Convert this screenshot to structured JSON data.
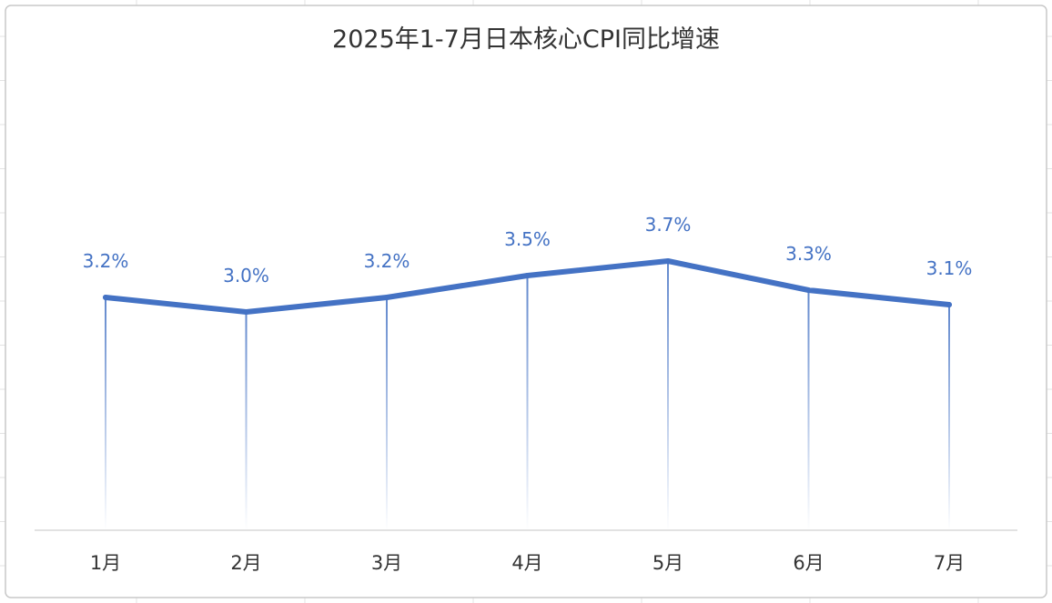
{
  "colors": {
    "line": "#4472c4",
    "label": "#4472c4",
    "grid": "#e3e3e3",
    "axis": "#d9d9d9",
    "frame": "#c8c8c8",
    "text": "#333333"
  },
  "chart_data": {
    "type": "line",
    "title": "2025年1-7月日本核心CPI同比增速",
    "categories": [
      "1月",
      "2月",
      "3月",
      "4月",
      "5月",
      "6月",
      "7月"
    ],
    "series": [
      {
        "values": [
          3.2,
          3.0,
          3.2,
          3.5,
          3.7,
          3.3,
          3.1
        ],
        "labels": [
          "3.2%",
          "3.0%",
          "3.2%",
          "3.5%",
          "3.7%",
          "3.3%",
          "3.1%"
        ]
      }
    ],
    "ylim": [
      0,
      4.8
    ],
    "grid": false,
    "drop_lines": true,
    "legend": "none"
  }
}
